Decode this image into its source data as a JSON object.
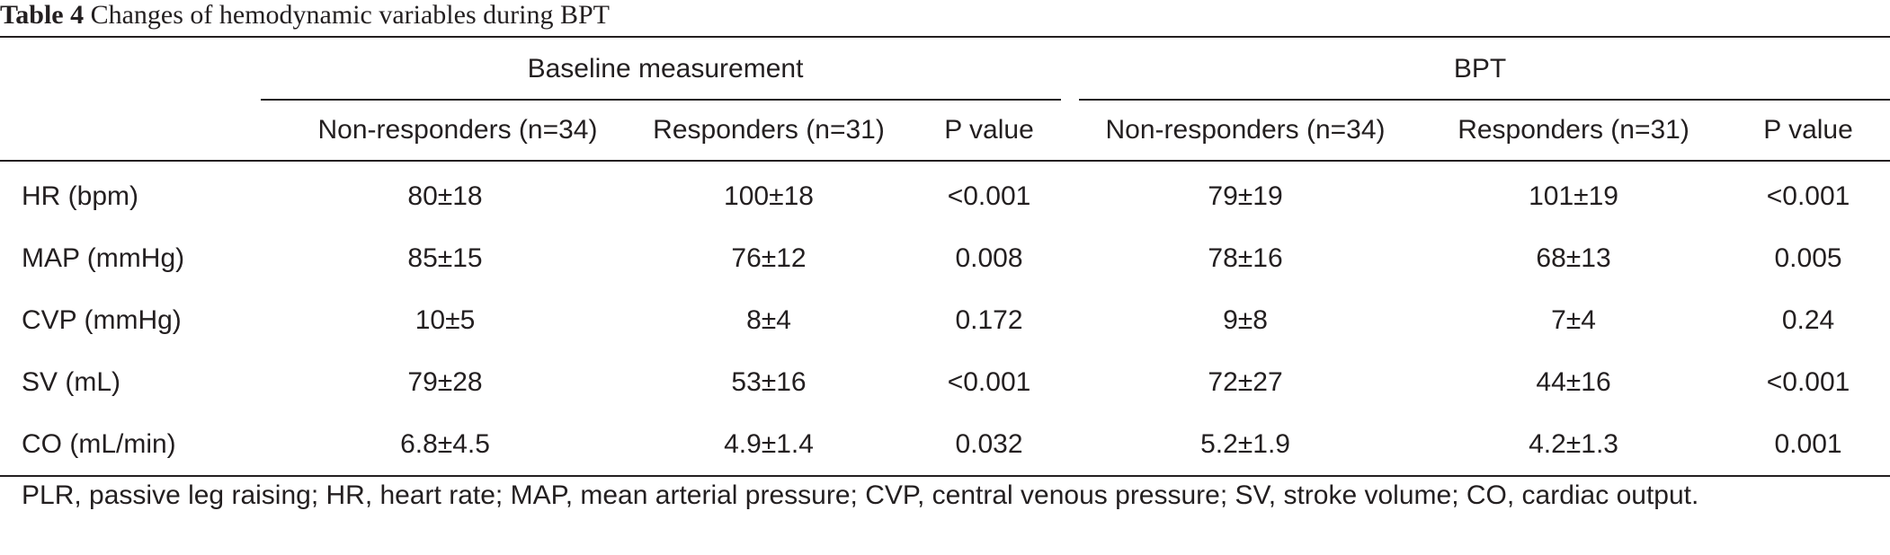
{
  "caption": {
    "label": "Table 4",
    "text": "Changes of hemodynamic variables during BPT"
  },
  "table": {
    "groups": [
      "Baseline measurement",
      "BPT"
    ],
    "subheaders": [
      "Non-responders (n=34)",
      "Responders (n=31)",
      "P value",
      "Non-responders (n=34)",
      "Responders (n=31)",
      "P value"
    ],
    "rows": [
      {
        "label": "HR (bpm)",
        "values": [
          "80±18",
          "100±18",
          "<0.001",
          "79±19",
          "101±19",
          "<0.001"
        ]
      },
      {
        "label": "MAP (mmHg)",
        "values": [
          "85±15",
          "76±12",
          "0.008",
          "78±16",
          "68±13",
          "0.005"
        ]
      },
      {
        "label": "CVP (mmHg)",
        "values": [
          "10±5",
          "8±4",
          "0.172",
          "9±8",
          "7±4",
          "0.24"
        ]
      },
      {
        "label": "SV (mL)",
        "values": [
          "79±28",
          "53±16",
          "<0.001",
          "72±27",
          "44±16",
          "<0.001"
        ]
      },
      {
        "label": "CO (mL/min)",
        "values": [
          "6.8±4.5",
          "4.9±1.4",
          "0.032",
          "5.2±1.9",
          "4.2±1.3",
          "0.001"
        ]
      }
    ]
  },
  "footnote": "PLR, passive leg raising; HR, heart rate; MAP, mean arterial pressure; CVP, central venous pressure; SV, stroke volume; CO, cardiac output."
}
